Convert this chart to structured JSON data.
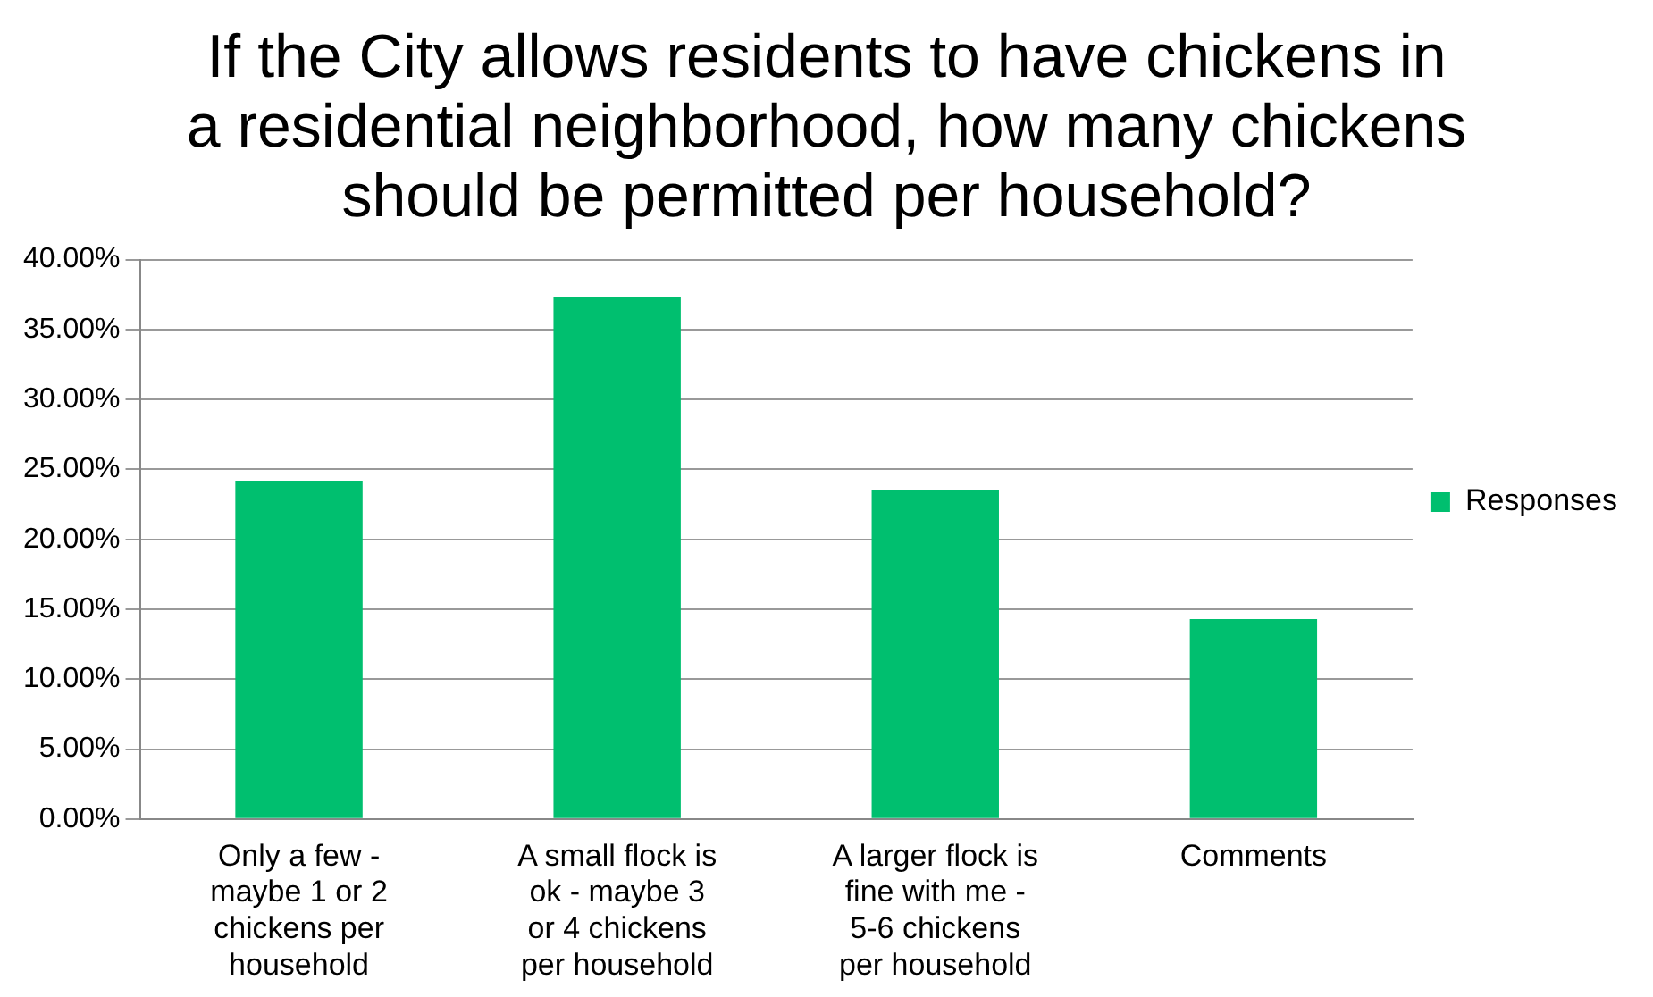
{
  "chart_data": {
    "type": "bar",
    "title": "If the City allows residents to have chickens in a residential neighborhood, how many chickens should be permitted per household?",
    "categories": [
      "Only a few - maybe 1 or 2 chickens per household",
      "A small flock is ok - maybe 3 or 4 chickens per household",
      "A larger flock is fine with me - 5-6 chickens per household",
      "Comments"
    ],
    "series": [
      {
        "name": "Responses",
        "color": "#00bf6f",
        "values": [
          24.2,
          37.3,
          23.5,
          14.3
        ]
      }
    ],
    "ylim": [
      0,
      40
    ],
    "yticks": [
      {
        "value": 0,
        "label": "0.00%"
      },
      {
        "value": 5,
        "label": "5.00%"
      },
      {
        "value": 10,
        "label": "10.00%"
      },
      {
        "value": 15,
        "label": "15.00%"
      },
      {
        "value": 20,
        "label": "20.00%"
      },
      {
        "value": 25,
        "label": "25.00%"
      },
      {
        "value": 30,
        "label": "30.00%"
      },
      {
        "value": 35,
        "label": "35.00%"
      },
      {
        "value": 40,
        "label": "40.00%"
      }
    ],
    "grid": "y",
    "legend": "right"
  }
}
